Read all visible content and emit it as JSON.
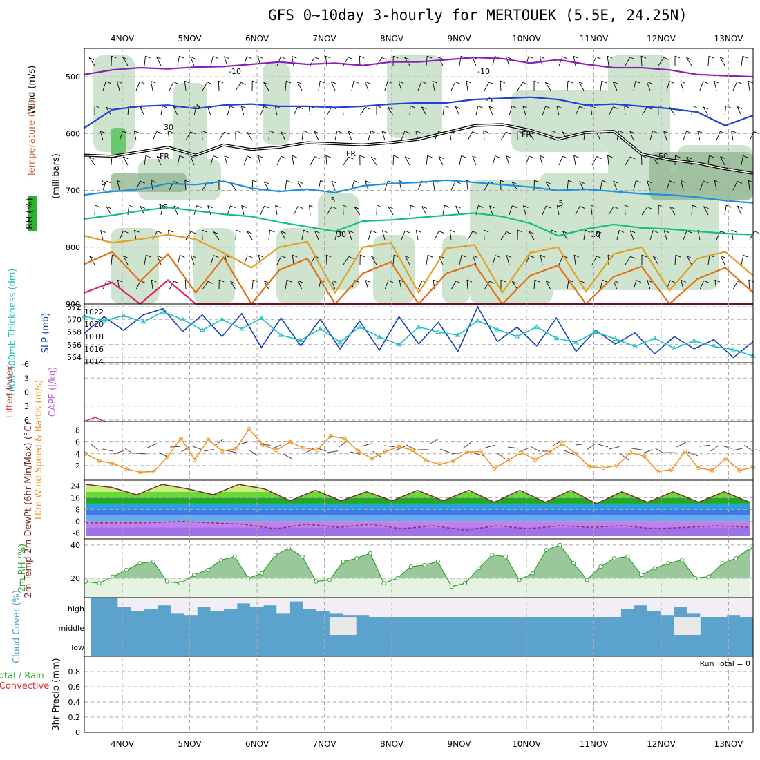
{
  "title": "GFS 0~10day 3-hourly for MERTOUEK (5.5E, 24.25N)",
  "colors": {
    "grid": "#aaaaaa",
    "rh_shade": "#cfe4cf",
    "rh_dark": "#94b894",
    "minus10": "#8a1eb8",
    "minus5": "#2040d8",
    "freezing": "#000000",
    "plus5": "#1e90e0",
    "plus10": "#10c080",
    "plus15": "#e0a020",
    "plus20": "#e07010",
    "plus25": "#e02060",
    "thickness": "#20c0c0",
    "slp": "#1040c0",
    "wind10m": "#f09020",
    "temp": "#7a2a2a",
    "dewpt": "#8a3060",
    "rh2m": "#30a030",
    "cloud": "#5ba2cc",
    "cloud_clear": "#f2eef6"
  },
  "chart_data": [
    {
      "type": "line",
      "panel": "upper_air",
      "ylabel_parts": [
        "Wind (m/s)",
        "Temperature (°C)",
        "RH (%)"
      ],
      "ylabel2": "(millibars)",
      "y_ticks": [
        500,
        600,
        700,
        800,
        900
      ],
      "ylim": [
        450,
        900
      ],
      "reversed": true,
      "contour_labels": [
        "-10",
        "-10",
        "-5",
        "-5",
        "FR",
        "FR",
        "FR",
        "5",
        "5",
        "5",
        "10",
        "10",
        "30",
        "30",
        "50"
      ],
      "series": [
        {
          "name": "-10",
          "key": "minus10",
          "pressure": [
            496,
            488,
            484,
            486,
            483,
            482,
            478,
            474,
            478,
            476,
            480,
            474,
            474,
            470,
            466,
            468,
            476,
            470,
            478,
            484,
            484,
            488,
            496,
            498,
            500
          ]
        },
        {
          "name": "-5",
          "key": "minus5",
          "pressure": [
            590,
            558,
            552,
            550,
            556,
            550,
            548,
            552,
            552,
            554,
            552,
            548,
            546,
            546,
            540,
            538,
            536,
            540,
            550,
            548,
            552,
            556,
            562,
            586,
            568
          ]
        },
        {
          "name": "FR",
          "key": "freezing",
          "pressure": [
            638,
            640,
            632,
            624,
            638,
            620,
            628,
            624,
            616,
            618,
            620,
            616,
            610,
            598,
            586,
            584,
            594,
            610,
            598,
            596,
            636,
            646,
            652,
            662,
            670
          ]
        },
        {
          "name": "5",
          "key": "plus5",
          "pressure": [
            708,
            702,
            698,
            688,
            690,
            684,
            696,
            702,
            698,
            704,
            692,
            688,
            686,
            682,
            686,
            690,
            694,
            700,
            698,
            702,
            706,
            708,
            712,
            718,
            722
          ]
        },
        {
          "name": "10",
          "key": "plus10",
          "pressure": [
            750,
            744,
            736,
            730,
            736,
            742,
            746,
            756,
            764,
            772,
            754,
            752,
            748,
            744,
            740,
            746,
            758,
            780,
            768,
            760,
            766,
            768,
            772,
            776,
            778
          ]
        },
        {
          "name": "",
          "key": "plus15",
          "pressure": [
            780,
            792,
            786,
            778,
            786,
            810,
            836,
            800,
            790,
            880,
            800,
            792,
            880,
            802,
            796,
            880,
            810,
            800,
            878,
            812,
            800,
            876,
            820,
            808,
            850
          ]
        },
        {
          "name": "",
          "key": "plus20",
          "pressure": [
            830,
            808,
            860,
            812,
            880,
            818,
            900,
            840,
            820,
            900,
            846,
            826,
            900,
            846,
            830,
            900,
            850,
            832,
            900,
            852,
            834,
            900,
            856,
            836,
            880
          ]
        },
        {
          "name": "",
          "key": "plus25",
          "pressure": [
            880,
            862,
            900,
            858,
            900,
            900,
            900,
            900,
            900,
            900,
            900,
            900,
            900,
            900,
            900,
            900,
            900,
            900,
            900,
            900,
            900,
            900,
            900,
            900,
            900
          ]
        }
      ]
    },
    {
      "type": "line",
      "panel": "slp_thickness",
      "ylabel_left": "1000-500mb Thickness (dm)",
      "ylabel_right": "SLP (mb)",
      "left_ticks": [
        564,
        566,
        568,
        570,
        572
      ],
      "right_ticks": [
        1014,
        1016,
        1018,
        1020,
        1022
      ],
      "series": [
        {
          "name": "SLP",
          "key": "slp",
          "axis": "right",
          "values": [
            1018.5,
            1021.2,
            1019.0,
            1021.5,
            1022.5,
            1018.8,
            1021.5,
            1018.0,
            1021.7,
            1016.2,
            1021.0,
            1016.5,
            1020.8,
            1016.0,
            1020.5,
            1015.8,
            1021.2,
            1016.8,
            1020.3,
            1015.6,
            1022.8,
            1017.2,
            1019.5,
            1016.5,
            1021.0,
            1015.6,
            1019.0,
            1016.8,
            1018.6,
            1015.2,
            1018.0,
            1016.0,
            1017.5,
            1014.6,
            1017.2
          ]
        },
        {
          "name": "Thickness",
          "key": "thickness",
          "axis": "left",
          "values": [
            570.5,
            569.8,
            570.6,
            569.6,
            571.2,
            570.0,
            568.3,
            570.0,
            568.5,
            570.2,
            567.5,
            566.7,
            568.5,
            566.4,
            568.8,
            567.2,
            566.0,
            568.8,
            568.0,
            567.5,
            569.8,
            568.4,
            567.3,
            568.8,
            567.0,
            566.4,
            568.0,
            566.9,
            565.7,
            567.0,
            565.4,
            566.6,
            565.7,
            565.2,
            564.2
          ]
        }
      ]
    },
    {
      "type": "line",
      "panel": "cape_li",
      "ylabel_left": "Lifted Index",
      "ylabel_right": "CAPE (J/kg)",
      "y_ticks": [
        "-6",
        "-3",
        "0",
        "3",
        "6"
      ],
      "series": [
        {
          "name": "Lifted Index",
          "key": "plus25",
          "values": [
            6.2,
            5.4,
            6.4
          ]
        }
      ]
    },
    {
      "type": "line",
      "panel": "wind10m",
      "ylabel": "10m Wind Speed & Barbs (m/s)",
      "y_ticks": [
        2,
        4,
        6,
        8
      ],
      "ylim": [
        0,
        9
      ],
      "series": [
        {
          "name": "10m Wind Speed",
          "key": "wind10m",
          "values": [
            4.0,
            2.8,
            2.4,
            1.4,
            0.9,
            1.0,
            3.5,
            6.6,
            3.0,
            6.4,
            4.5,
            4.8,
            8.2,
            5.5,
            4.6,
            6.0,
            5.0,
            4.6,
            7.0,
            6.6,
            4.5,
            3.2,
            4.4,
            5.2,
            4.6,
            2.9,
            2.2,
            2.8,
            4.3,
            4.4,
            1.5,
            2.9,
            4.2,
            3.0,
            4.2,
            5.7,
            4.0,
            1.8,
            1.6,
            2.0,
            4.2,
            3.6,
            1.0,
            1.3,
            4.4,
            1.6,
            1.2,
            3.2,
            1.2,
            1.7
          ]
        }
      ]
    },
    {
      "type": "area",
      "panel": "temp_dewpt",
      "ylabel": "2m Temp 2m DewPt (6hr Min/Max) (°C)",
      "y_ticks": [
        "-8",
        "0",
        "8",
        "16",
        "24"
      ],
      "series": [
        {
          "name": "2m Temp",
          "key": "temp",
          "values": [
            25,
            23,
            18,
            25,
            22,
            18,
            25,
            22,
            14,
            21,
            14,
            20,
            14,
            21,
            14,
            21,
            13,
            21,
            13,
            21,
            12,
            20,
            13,
            20,
            13,
            20,
            13
          ]
        },
        {
          "name": "2m DewPt",
          "key": "dewpt",
          "values": [
            -1,
            -1,
            -1,
            0,
            -1,
            -2,
            -5,
            -2,
            -4,
            -2,
            -5,
            -3,
            -6,
            -3,
            -5,
            -3,
            -4,
            -3,
            -5,
            -4,
            -3,
            -4
          ]
        }
      ]
    },
    {
      "type": "area",
      "panel": "rh2m",
      "ylabel": "2m RH (%)",
      "y_ticks": [
        20,
        40
      ],
      "series": [
        {
          "name": "2m RH",
          "key": "rh2m",
          "values": [
            18,
            17,
            21,
            25,
            29,
            30,
            18,
            17,
            22,
            25,
            31,
            33,
            20,
            23,
            34,
            38,
            33,
            18,
            19,
            30,
            32,
            35,
            17,
            20,
            27,
            28,
            30,
            15,
            17,
            26,
            34,
            33,
            19,
            23,
            37,
            40,
            29,
            19,
            27,
            32,
            33,
            22,
            26,
            29,
            31,
            20,
            21,
            29,
            32,
            38
          ]
        }
      ]
    },
    {
      "type": "bar",
      "panel": "cloud",
      "ylabel": "Cloud Cover (%)",
      "y_ticks": [
        "high",
        "middle",
        "low"
      ],
      "series": [
        {
          "name": "high",
          "key": "cloud",
          "values": [
            1,
            1,
            0.5,
            0.3,
            0.4,
            0.6,
            0.2,
            0.1,
            0.5,
            0.3,
            0.4,
            0.7,
            0.5,
            0.6,
            0.2,
            0.8,
            0.4,
            0.3,
            0.2,
            0.1,
            0.1,
            0.0,
            0.0,
            0.0,
            0.0,
            0.0,
            0.0,
            0.0,
            0.0,
            0.0,
            0.0,
            0.0,
            0.0,
            0.0,
            0.0,
            0.0,
            0.0,
            0.0,
            0.0,
            0.0,
            0.4,
            0.6,
            0.3,
            0.1,
            0.5,
            0.2,
            0.0,
            0.0,
            0.1,
            0.0
          ]
        },
        {
          "name": "middle",
          "key": "cloud",
          "values": [
            1,
            1,
            1,
            1,
            1,
            1,
            1,
            1,
            1,
            1,
            1,
            1,
            1,
            1,
            1,
            1,
            1,
            1,
            0,
            0,
            1,
            1,
            1,
            1,
            1,
            1,
            1,
            1,
            1,
            1,
            1,
            1,
            1,
            1,
            1,
            1,
            1,
            1,
            1,
            1,
            1,
            1,
            1,
            1,
            0,
            0,
            1,
            1,
            1,
            1
          ]
        }
      ]
    },
    {
      "type": "bar",
      "panel": "precip",
      "ylabel_left": "Total / Rain",
      "ylabel_left2": "Convective",
      "ylabel": "3hr Precip (mm)",
      "y_ticks": [
        "0",
        "0.2",
        "0.4",
        "0.6",
        "0.8"
      ],
      "annotation": "Run Total = 0",
      "series": []
    }
  ],
  "days": [
    "4NOV",
    "5NOV",
    "6NOV",
    "7NOV",
    "8NOV",
    "9NOV",
    "10NOV",
    "11NOV",
    "12NOV",
    "13NOV"
  ]
}
